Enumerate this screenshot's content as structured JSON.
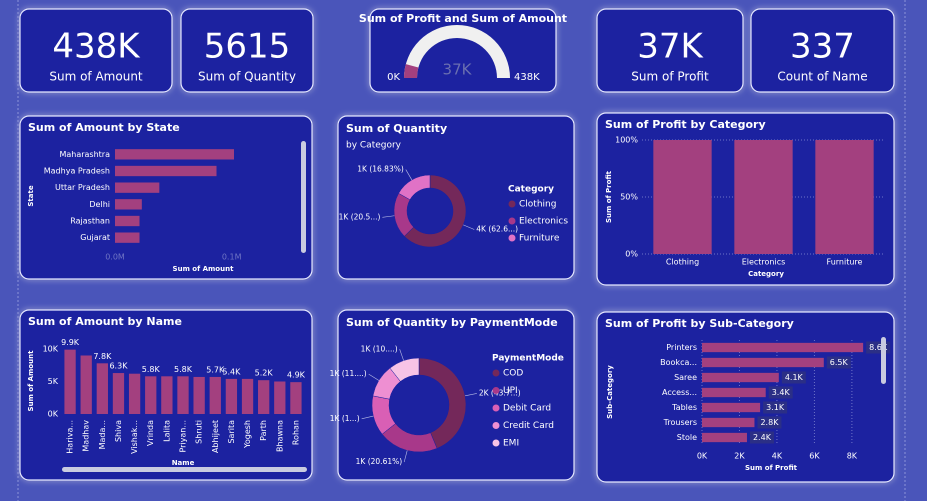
{
  "cards": [
    {
      "value": "438K",
      "label": "Sum of Amount"
    },
    {
      "value": "5615",
      "label": "Sum of Quantity"
    },
    {
      "value": "37K",
      "label": "Sum of Profit"
    },
    {
      "value": "337",
      "label": "Count of Name"
    }
  ],
  "chart_data": [
    {
      "type": "gauge",
      "title": "Sum of Profit and Sum of Amount",
      "value": 37000,
      "value_label": "37K",
      "ylim": [
        0,
        438000
      ],
      "yticks": [
        {
          "value": 0,
          "label": "0K"
        },
        {
          "value": 438000,
          "label": "438K"
        }
      ],
      "color": "#a3407f",
      "track_color": "#f0f0f0"
    },
    {
      "type": "bar",
      "horizontal": true,
      "title": "Sum of Amount by State",
      "categories": [
        "Maharashtra",
        "Madhya Pradesh",
        "Uttar Pradesh",
        "Delhi",
        "Rajasthan",
        "Gujarat"
      ],
      "values": [
        102000,
        87000,
        38000,
        23000,
        21000,
        21000
      ],
      "color": "#a3407f",
      "xlim": [
        0,
        150000
      ],
      "xticks": [
        {
          "value": 0,
          "label": "0.0M"
        },
        {
          "value": 100000,
          "label": "0.1M"
        }
      ],
      "xlabel": "Sum of Amount",
      "ylabel": "State",
      "grid": false
    },
    {
      "type": "donut",
      "title": "Sum of Quantity",
      "subtitle": "by Category",
      "categories": [
        "Clothing",
        "Electronics",
        "Furniture"
      ],
      "values": [
        3516,
        1154,
        945
      ],
      "value_labels": [
        "4K (62.6...)",
        "1K (20.5...)",
        "1K (16.83%)"
      ],
      "colors": [
        "#74285a",
        "#a8388a",
        "#e072c6"
      ],
      "legend_title": "Category"
    },
    {
      "type": "bar",
      "horizontal": false,
      "title": "Sum of Profit by Category",
      "categories": [
        "Clothing",
        "Electronics",
        "Furniture"
      ],
      "values": [
        100,
        100,
        100
      ],
      "color": "#a3407f",
      "ylim": [
        0,
        100
      ],
      "yticks": [
        {
          "value": 0,
          "label": "0%"
        },
        {
          "value": 50,
          "label": "50%"
        },
        {
          "value": 100,
          "label": "100%"
        }
      ],
      "xlabel": "Category",
      "ylabel": "Sum of Profit",
      "grid": true
    },
    {
      "type": "bar",
      "horizontal": false,
      "title": "Sum of Amount by Name",
      "categories": [
        "Hariva...",
        "Madhav",
        "Mada...",
        "Shiva",
        "Vishak...",
        "Vrinda",
        "Lalita",
        "Priyan...",
        "Shruti",
        "Abhijeet",
        "Sarita",
        "Yogesh",
        "Parth",
        "Bhawna",
        "Rohan"
      ],
      "values": [
        9900,
        9000,
        7800,
        6300,
        6200,
        5800,
        5800,
        5800,
        5700,
        5700,
        5400,
        5400,
        5200,
        5000,
        4900
      ],
      "value_labels": [
        "9.9K",
        null,
        "7.8K",
        "6.3K",
        null,
        "5.8K",
        null,
        "5.8K",
        null,
        "5.7K",
        "5.4K",
        null,
        "5.2K",
        null,
        "4.9K"
      ],
      "color": "#a3407f",
      "ylim": [
        0,
        10000
      ],
      "yticks": [
        {
          "value": 0,
          "label": "0K"
        },
        {
          "value": 5000,
          "label": "5K"
        },
        {
          "value": 10000,
          "label": "10K"
        }
      ],
      "xlabel": "Name",
      "ylabel": "Sum of Amount",
      "grid": false
    },
    {
      "type": "donut",
      "title": "Sum of Quantity by PaymentMode",
      "categories": [
        "COD",
        "UPI",
        "Debit Card",
        "Credit Card",
        "EMI"
      ],
      "values": [
        2456,
        1157,
        773,
        633,
        596
      ],
      "value_labels": [
        "2K (43.7...)",
        "1K (20.61%)",
        "1K (1...)",
        "1K (11....)",
        "1K (10....)"
      ],
      "colors": [
        "#74285a",
        "#a8388a",
        "#d95fb5",
        "#ee8fd2",
        "#f7c3e6"
      ],
      "legend_title": "PaymentMode"
    },
    {
      "type": "bar",
      "horizontal": true,
      "title": "Sum of Profit by Sub-Category",
      "categories": [
        "Printers",
        "Bookca...",
        "Saree",
        "Access...",
        "Tables",
        "Trousers",
        "Stole"
      ],
      "values": [
        8600,
        6500,
        4100,
        3400,
        3100,
        2800,
        2400
      ],
      "value_labels": [
        "8.6K",
        "6.5K",
        "4.1K",
        "3.4K",
        "3.1K",
        "2.8K",
        "2.4K"
      ],
      "color": "#a3407f",
      "xlim": [
        0,
        9500
      ],
      "xticks": [
        {
          "value": 0,
          "label": "0K"
        },
        {
          "value": 2000,
          "label": "2K"
        },
        {
          "value": 4000,
          "label": "4K"
        },
        {
          "value": 6000,
          "label": "6K"
        },
        {
          "value": 8000,
          "label": "8K"
        }
      ],
      "xlabel": "Sum of Profit",
      "ylabel": "Sub-Category",
      "grid": true
    }
  ]
}
